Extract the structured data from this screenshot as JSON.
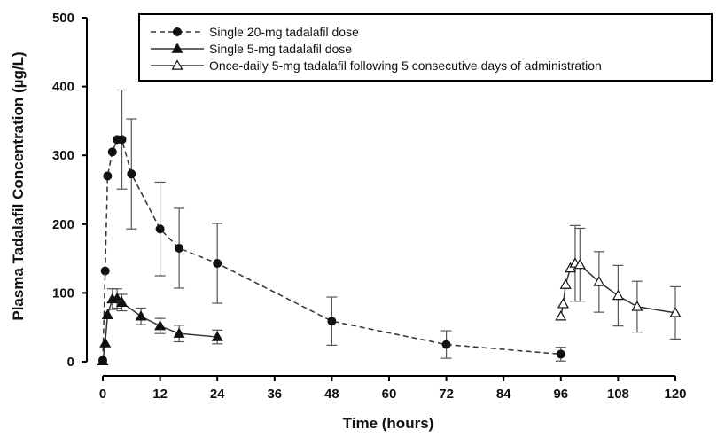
{
  "chart_data": {
    "type": "line",
    "xlabel": "Time (hours)",
    "ylabel": "Plasma Tadalafil Concentration (µg/L)",
    "xlim": [
      0,
      120
    ],
    "ylim": [
      0,
      500
    ],
    "x_ticks": [
      0,
      12,
      24,
      36,
      48,
      60,
      72,
      84,
      96,
      108,
      120
    ],
    "y_ticks": [
      0,
      100,
      200,
      300,
      400,
      500
    ],
    "grid": false,
    "legend_position": "top-right",
    "series": [
      {
        "name": "Single 20-mg tadalafil dose",
        "marker": "filled-circle",
        "line_style": "dashed",
        "x": [
          0,
          0.5,
          1,
          2,
          3,
          4,
          6,
          12,
          16,
          24,
          48,
          72,
          96
        ],
        "y": [
          2,
          132,
          270,
          305,
          323,
          323,
          273,
          193,
          165,
          143,
          59,
          25,
          11
        ],
        "error": [
          0,
          0,
          0,
          0,
          0,
          72,
          80,
          68,
          58,
          58,
          35,
          20,
          10
        ]
      },
      {
        "name": "Single 5-mg tadalafil dose",
        "marker": "filled-triangle",
        "line_style": "solid",
        "x": [
          0,
          0.5,
          1,
          2,
          3,
          4,
          8,
          12,
          16,
          24
        ],
        "y": [
          1,
          27,
          68,
          91,
          92,
          86,
          66,
          52,
          41,
          36
        ],
        "error": [
          0,
          0,
          0,
          15,
          14,
          12,
          12,
          11,
          12,
          10
        ]
      },
      {
        "name": "Once-daily 5-mg tadalafil following 5 consecutive days of administration",
        "marker": "open-triangle",
        "line_style": "solid",
        "x": [
          96,
          96.5,
          97,
          98,
          99,
          100,
          104,
          108,
          112,
          120
        ],
        "y": [
          66,
          84,
          112,
          136,
          143,
          141,
          116,
          96,
          80,
          71
        ],
        "error": [
          0,
          0,
          0,
          0,
          55,
          53,
          44,
          44,
          37,
          38
        ]
      }
    ]
  }
}
